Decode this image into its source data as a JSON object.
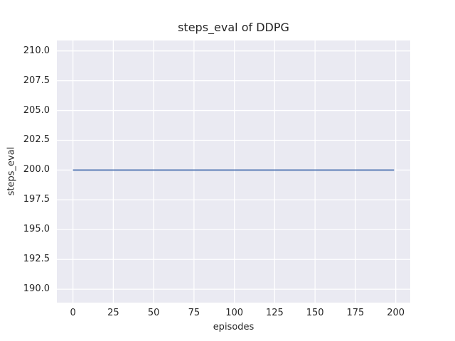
{
  "chart_data": {
    "type": "line",
    "title": "steps_eval of DDPG",
    "xlabel": "episodes",
    "ylabel": "steps_eval",
    "xlim": [
      -9.95,
      208.95
    ],
    "ylim": [
      188.875,
      210.875
    ],
    "xticks": {
      "values": [
        0,
        25,
        50,
        75,
        100,
        125,
        150,
        175,
        200
      ],
      "labels": [
        "0",
        "25",
        "50",
        "75",
        "100",
        "125",
        "150",
        "175",
        "200"
      ]
    },
    "yticks": {
      "values": [
        190.0,
        192.5,
        195.0,
        197.5,
        200.0,
        202.5,
        205.0,
        207.5,
        210.0
      ],
      "labels": [
        "190.0",
        "192.5",
        "195.0",
        "197.5",
        "200.0",
        "202.5",
        "205.0",
        "207.5",
        "210.0"
      ]
    },
    "grid": true,
    "legend": false,
    "series": [
      {
        "name": "steps_eval",
        "color": "#4c72b0",
        "x": [
          0,
          199
        ],
        "y": [
          200,
          200
        ]
      }
    ],
    "style": {
      "axes_background": "#eaeaf2",
      "grid_color": "#ffffff",
      "text_color": "#262626",
      "figure_background": "#ffffff",
      "line_width": 1.8,
      "grid_width": 1.3
    }
  }
}
